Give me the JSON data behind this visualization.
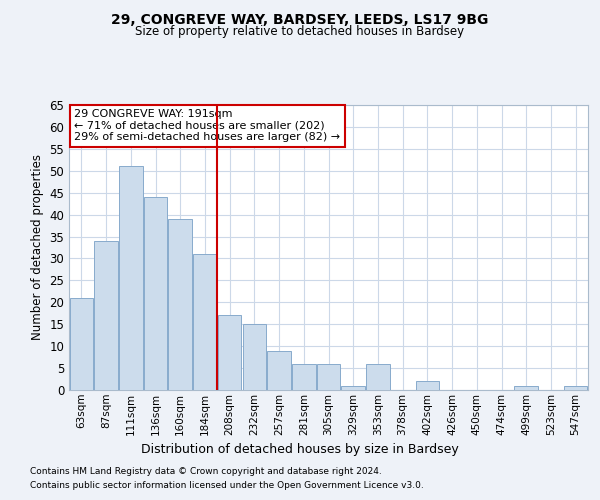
{
  "title1": "29, CONGREVE WAY, BARDSEY, LEEDS, LS17 9BG",
  "title2": "Size of property relative to detached houses in Bardsey",
  "xlabel": "Distribution of detached houses by size in Bardsey",
  "ylabel": "Number of detached properties",
  "categories": [
    "63sqm",
    "87sqm",
    "111sqm",
    "136sqm",
    "160sqm",
    "184sqm",
    "208sqm",
    "232sqm",
    "257sqm",
    "281sqm",
    "305sqm",
    "329sqm",
    "353sqm",
    "378sqm",
    "402sqm",
    "426sqm",
    "450sqm",
    "474sqm",
    "499sqm",
    "523sqm",
    "547sqm"
  ],
  "values": [
    21,
    34,
    51,
    44,
    39,
    31,
    17,
    15,
    9,
    6,
    6,
    1,
    6,
    0,
    2,
    0,
    0,
    0,
    1,
    0,
    1
  ],
  "bar_color": "#ccdcec",
  "bar_edge_color": "#88aacc",
  "reference_line_bin": 5,
  "annotation_text1": "29 CONGREVE WAY: 191sqm",
  "annotation_text2": "← 71% of detached houses are smaller (202)",
  "annotation_text3": "29% of semi-detached houses are larger (82) →",
  "annotation_box_color": "#ffffff",
  "annotation_box_edge": "#cc0000",
  "ref_line_color": "#cc0000",
  "ylim": [
    0,
    65
  ],
  "yticks": [
    0,
    5,
    10,
    15,
    20,
    25,
    30,
    35,
    40,
    45,
    50,
    55,
    60,
    65
  ],
  "footnote1": "Contains HM Land Registry data © Crown copyright and database right 2024.",
  "footnote2": "Contains public sector information licensed under the Open Government Licence v3.0.",
  "bg_color": "#eef2f8",
  "plot_bg_color": "#ffffff",
  "grid_color": "#ccd8e8"
}
